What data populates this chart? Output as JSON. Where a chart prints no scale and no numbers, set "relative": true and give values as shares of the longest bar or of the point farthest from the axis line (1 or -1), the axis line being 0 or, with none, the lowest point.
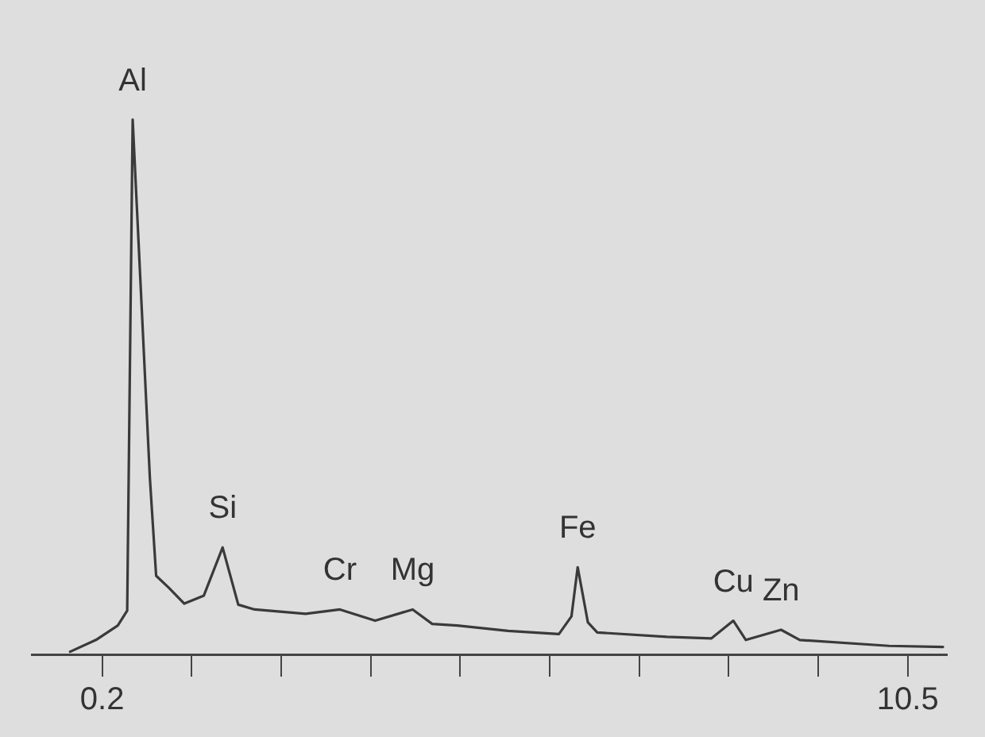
{
  "chart_data": {
    "type": "line",
    "relative": true,
    "color": "#3a3a3a",
    "marker": "none",
    "grid": false,
    "legend": false,
    "tick_labels": "x",
    "x": [
      -0.21,
      0.12,
      0.4,
      0.52,
      0.59,
      0.81,
      0.89,
      1.05,
      1.25,
      1.5,
      1.74,
      1.94,
      2.15,
      2.8,
      3.24,
      3.69,
      4.17,
      4.42,
      4.74,
      5.39,
      6.04,
      6.2,
      6.28,
      6.41,
      6.53,
      7.42,
      7.99,
      8.27,
      8.43,
      8.88,
      9.12,
      10.26,
      10.95
    ],
    "values": [
      0.005,
      0.027,
      0.054,
      0.082,
      1,
      0.33,
      0.147,
      0.125,
      0.095,
      0.11,
      0.2,
      0.093,
      0.084,
      0.076,
      0.084,
      0.063,
      0.084,
      0.057,
      0.054,
      0.044,
      0.038,
      0.071,
      0.163,
      0.06,
      0.041,
      0.033,
      0.03,
      0.063,
      0.027,
      0.046,
      0.027,
      0.016,
      0.014
    ],
    "xlim": [
      -0.7,
      11.0
    ],
    "xticks": [
      {
        "value": 0.2,
        "label": "0.2"
      },
      {
        "value": 1.344,
        "label": null
      },
      {
        "value": 2.489,
        "label": null
      },
      {
        "value": 3.633,
        "label": null
      },
      {
        "value": 4.778,
        "label": null
      },
      {
        "value": 5.922,
        "label": null
      },
      {
        "value": 7.067,
        "label": null
      },
      {
        "value": 8.211,
        "label": null
      },
      {
        "value": 9.356,
        "label": null
      },
      {
        "value": 10.5,
        "label": "10.5"
      }
    ],
    "annotations": [
      {
        "text": "Al",
        "x": 0.59,
        "y": 1
      },
      {
        "text": "Si",
        "x": 1.74,
        "y": 0.2
      },
      {
        "text": "Cr",
        "x": 3.24,
        "y": 0.084
      },
      {
        "text": "Mg",
        "x": 4.17,
        "y": 0.084
      },
      {
        "text": "Fe",
        "x": 6.28,
        "y": 0.163
      },
      {
        "text": "Cu",
        "x": 8.27,
        "y": 0.063
      },
      {
        "text": "Zn",
        "x": 8.88,
        "y": 0.046
      }
    ]
  }
}
